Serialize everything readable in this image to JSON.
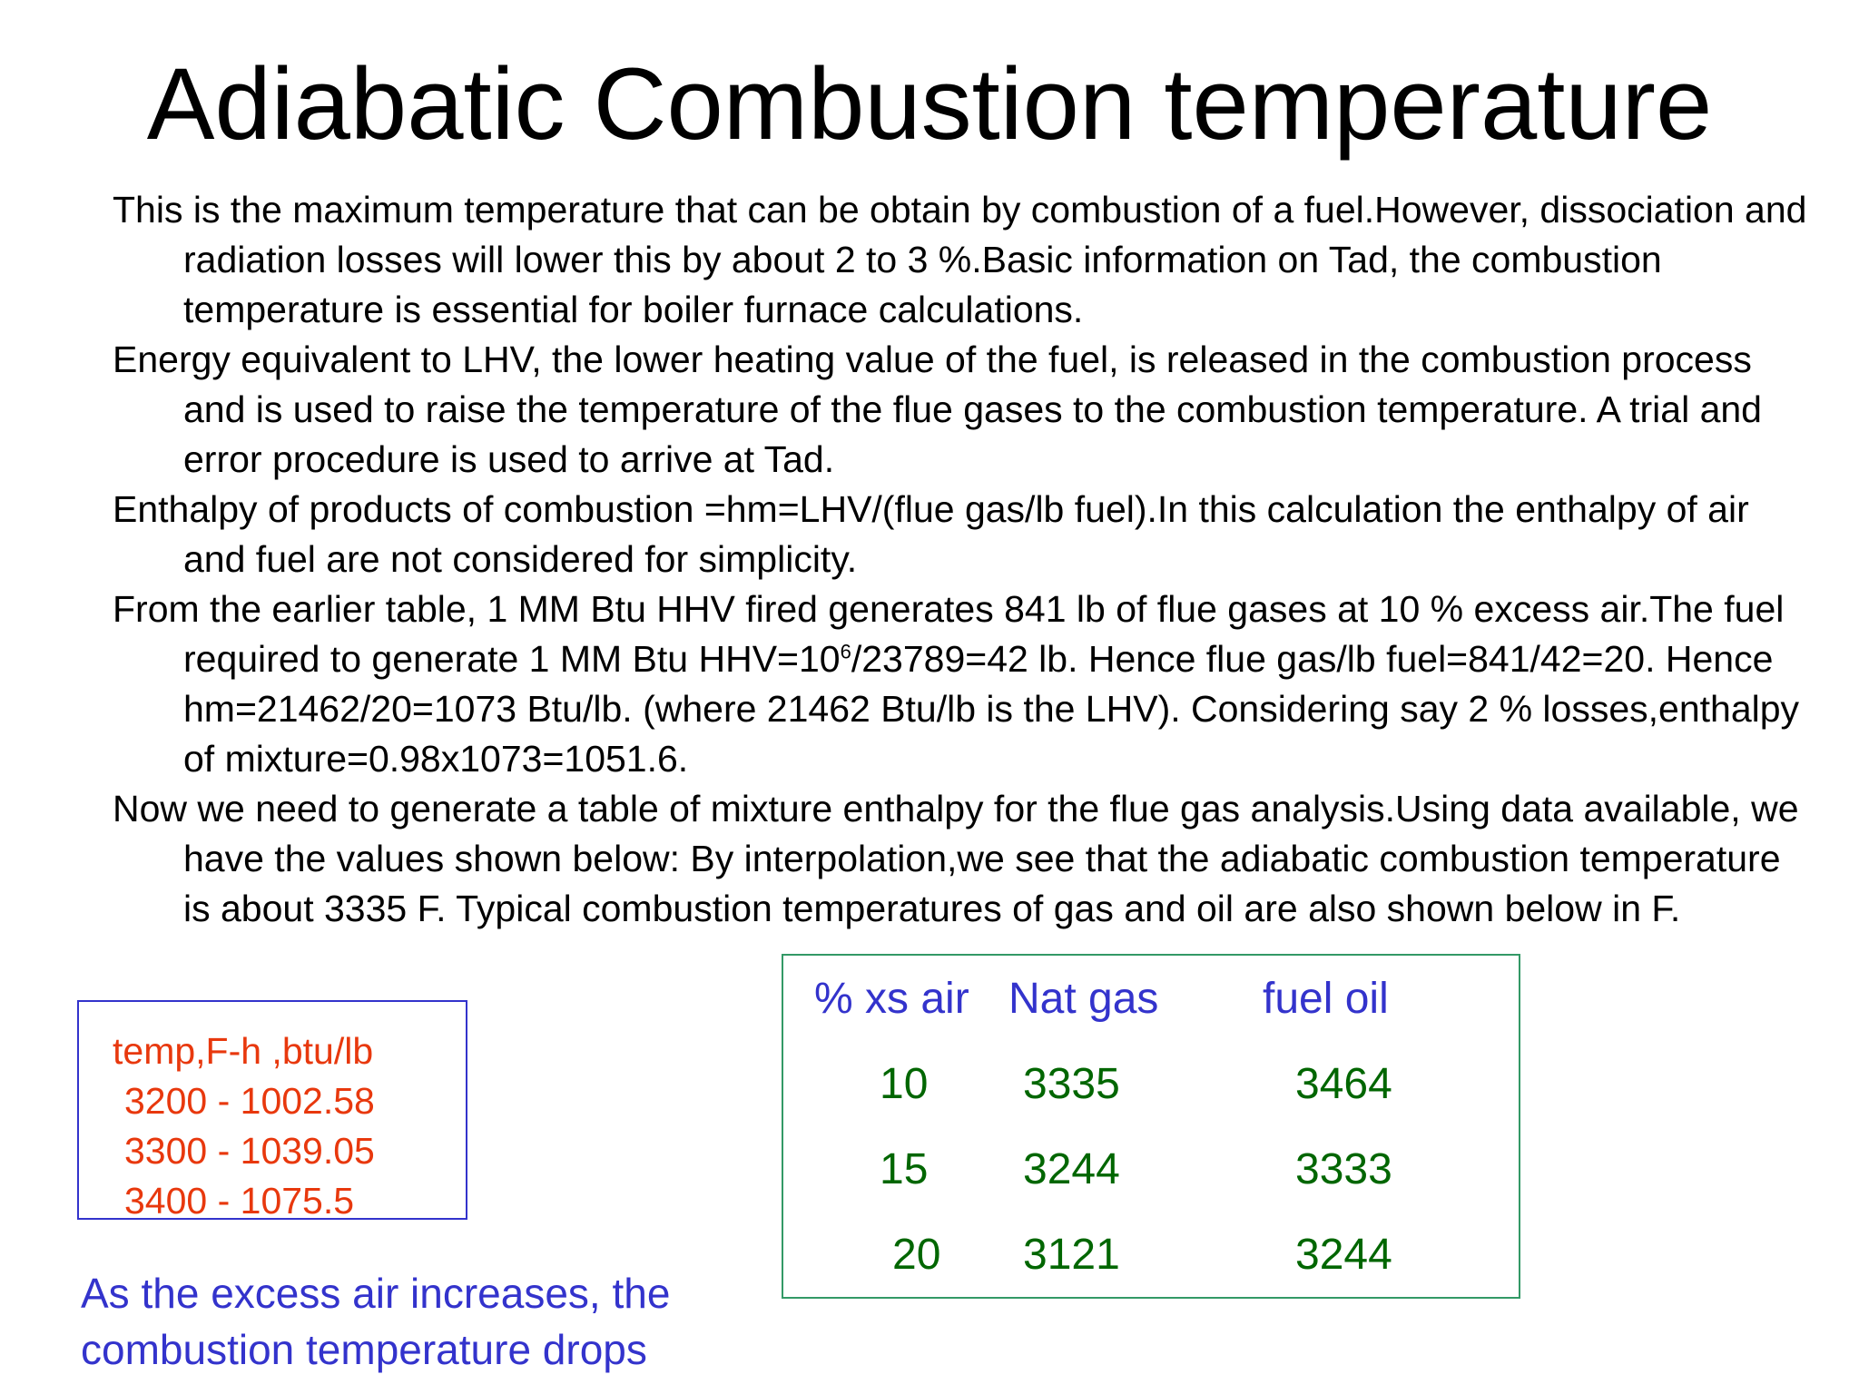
{
  "title": "Adiabatic Combustion temperature",
  "paragraphs": {
    "p1": "This is the maximum temperature that can be obtain by combustion of a fuel.However, dissociation and radiation losses will lower this by about 2 to 3 %.Basic information on Tad, the combustion temperature is essential for boiler furnace calculations.",
    "p2": "Energy equivalent to LHV, the lower heating value of the fuel, is released in the combustion process and is used to raise the temperature of the flue gases to the combustion temperature. A trial and error procedure is used to arrive at Tad.",
    "p3": "Enthalpy of products of combustion =hm=LHV/(flue gas/lb fuel).In this calculation the enthalpy of air and fuel are not considered for simplicity.",
    "p4_before": "From the earlier table, 1 MM Btu HHV fired generates 841 lb of flue gases at 10 % excess air.The fuel required to generate 1 MM Btu HHV=10",
    "p4_exp": "6",
    "p4_after": "/23789=42 lb. Hence flue gas/lb fuel=841/42=20. Hence hm=21462/20=1073 Btu/lb. (where 21462 Btu/lb is the LHV). Considering say 2 % losses,enthalpy of mixture=0.98x1073=1051.6.",
    "p5": "Now we need to generate a table of mixture enthalpy for the flue gas analysis.Using data available, we have the values shown below: By interpolation,we see that the adiabatic combustion temperature is  about 3335 F. Typical combustion temperatures of gas and oil are also shown below in F."
  },
  "enthalpy_table": {
    "header": "temp,F-h ,btu/lb",
    "rows": [
      "3200 - 1002.58",
      "3300 - 1039.05",
      "3400 - 1075.5"
    ]
  },
  "note": {
    "line1": "As the excess air increases, the",
    "line2": "combustion temperature drops"
  },
  "temp_table": {
    "headers": [
      "% xs air",
      "Nat gas",
      "fuel oil"
    ],
    "rows": [
      [
        "10",
        "3335",
        "3464"
      ],
      [
        "15",
        "3244",
        "3333"
      ],
      [
        "20",
        "3121",
        "3244"
      ]
    ]
  },
  "colors": {
    "enthalpy_text": "#e8380d",
    "enthalpy_border": "#3333cc",
    "header_text": "#3333cc",
    "table_values": "#006600",
    "table_border": "#339966",
    "note_text": "#3333cc"
  }
}
